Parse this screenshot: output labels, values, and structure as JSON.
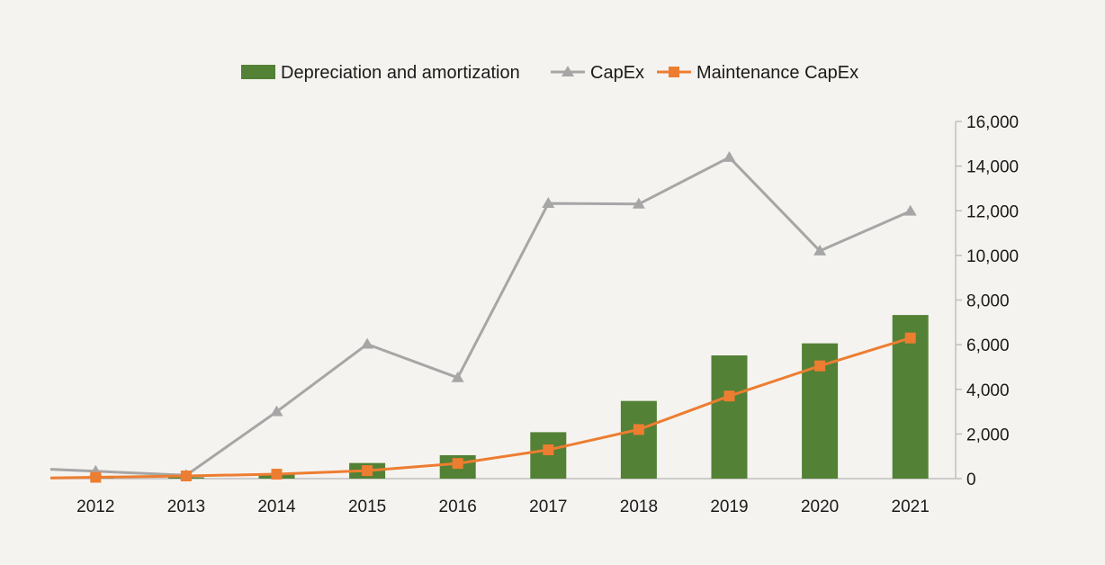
{
  "chart_data": {
    "type": "bar",
    "categories": [
      "2012",
      "2013",
      "2014",
      "2015",
      "2016",
      "2017",
      "2018",
      "2019",
      "2020",
      "2021"
    ],
    "series": [
      {
        "name": "Depreciation and amortization",
        "type": "bar",
        "color": "#538135",
        "values": [
          40,
          60,
          230,
          700,
          1050,
          2080,
          3480,
          5520,
          6060,
          7330
        ]
      },
      {
        "name": "CapEx",
        "type": "line",
        "marker": "triangle",
        "color": "#a6a6a6",
        "values": [
          330,
          150,
          3000,
          6020,
          4520,
          12330,
          12300,
          14390,
          10200,
          11980
        ]
      },
      {
        "name": "Maintenance CapEx",
        "type": "line",
        "marker": "square",
        "color": "#ed7d31",
        "values": [
          60,
          120,
          200,
          360,
          680,
          1290,
          2200,
          3700,
          5050,
          6300
        ]
      }
    ],
    "y_axis": {
      "position": "right",
      "ylim": [
        0,
        16000
      ],
      "ticks": [
        "0",
        "2,000",
        "4,000",
        "6,000",
        "8,000",
        "10,000",
        "12,000",
        "14,000",
        "16,000"
      ]
    },
    "legend_position": "top",
    "grid": false
  }
}
